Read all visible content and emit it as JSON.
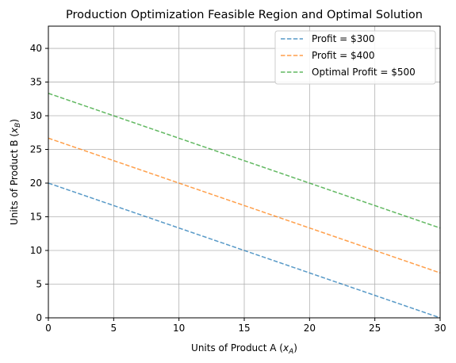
{
  "chart_data": {
    "type": "line",
    "title": "Production Optimization Feasible Region and Optimal Solution",
    "xlabel_main": "Units of Product A (",
    "xlabel_var": "x",
    "xlabel_sub": "A",
    "xlabel_end": ")",
    "ylabel_main": "Units of Product B (",
    "ylabel_var": "x",
    "ylabel_sub": "B",
    "ylabel_end": ")",
    "xlim": [
      0,
      30
    ],
    "ylim": [
      0,
      43.3
    ],
    "xticks": [
      0,
      5,
      10,
      15,
      20,
      25,
      30
    ],
    "yticks": [
      0,
      5,
      10,
      15,
      20,
      25,
      30,
      35,
      40
    ],
    "grid": true,
    "legend_position": "top-right",
    "series": [
      {
        "name": "Profit = $300",
        "color": "#1f77b4",
        "style": "dashed",
        "x": [
          0,
          30
        ],
        "y": [
          20,
          0
        ]
      },
      {
        "name": "Profit = $400",
        "color": "#ff7f0e",
        "style": "dashed",
        "x": [
          0,
          30
        ],
        "y": [
          26.67,
          6.67
        ]
      },
      {
        "name": "Optimal Profit = $500",
        "color": "#2ca02c",
        "style": "dashed",
        "x": [
          0,
          30
        ],
        "y": [
          33.33,
          13.33
        ]
      }
    ]
  }
}
